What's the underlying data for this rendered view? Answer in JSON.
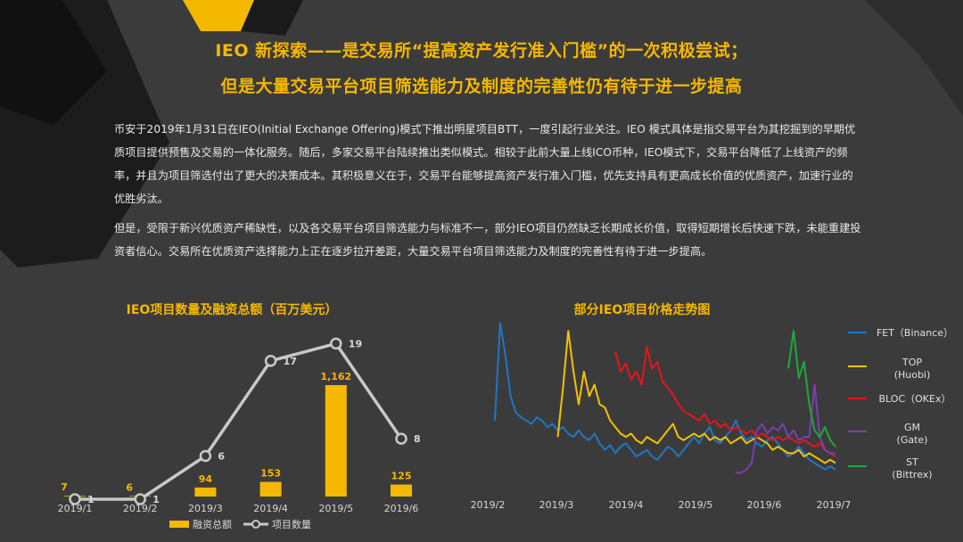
{
  "title_line1": "IEO 新探索——是交易所“提高资产发行准入门槛”的一次积极尝试；",
  "title_line2": "但是大量交易平台项目筛选能力及制度的完善性仍有待于进一步提高",
  "paragraph1": "币安于2019年1月31日在IEO(Initial Exchange Offering)模式下推出明星项目BTT，一度引起行业关注。IEO 模式具体是指交易平台为其挖掘到的早期优质项目提供预售及交易的一体化服务。随后，多家交易平台陆续推出类似模式。相较于此前大量上线ICO币种，IEO模式下，交易平台降低了上线资产的频率，并且为项目筛选付出了更大的决策成本。其积极意义在于，交易平台能够提高资产发行准入门槛，优先支持具有更高成长价值的优质资产，加速行业的优胜劣汰。",
  "paragraph2": "但是，受限于新兴优质资产稀缺性，以及各交易平台项目筛选能力与标准不一，部分IEO项目仍然缺乏长期成长价值，取得短期增长后快速下跌，未能重建投资者信心。交易所在优质资产选择能力上正在逐步拉开差距，大量交易平台项目筛选能力及制度的完善性有待于进一步提高。",
  "colors": {
    "accent": "#f5b800",
    "background": "#3c3b3c",
    "line_gray": "#c8c8c8",
    "fet": "#1f77c4",
    "top": "#f2c200",
    "bloc": "#e8141a",
    "gm": "#7a3fb0",
    "st": "#1fa83a"
  },
  "chart_data": [
    {
      "type": "bar",
      "title": "IEO项目数量及融资总额（百万美元）",
      "categories": [
        "2019/1",
        "2019/2",
        "2019/3",
        "2019/4",
        "2019/5",
        "2019/6"
      ],
      "series": [
        {
          "name": "融资总额",
          "type": "bar",
          "values": [
            7,
            6,
            94,
            153,
            1162,
            125
          ],
          "labels": [
            "7",
            "6",
            "94",
            "153",
            "1,162",
            "125"
          ]
        },
        {
          "name": "项目数量",
          "type": "line",
          "values": [
            1,
            1,
            6,
            17,
            19,
            8
          ],
          "labels": [
            "1",
            "1",
            "6",
            "17",
            "19",
            "8"
          ]
        }
      ],
      "legend": "bottom"
    },
    {
      "type": "line",
      "title": "部分IEO项目价格走势图",
      "x_ticks": [
        "2019/2",
        "2019/3",
        "2019/4",
        "2019/5",
        "2019/6",
        "2019/7"
      ],
      "x_range": [
        "2019-01-31",
        "2019-07-05"
      ],
      "axis_visible": false,
      "legend": "right",
      "series": [
        {
          "name": "FET (Binance)",
          "legend_lines": [
            "FET（Binance）"
          ],
          "color": "#1f77c4",
          "start": 0,
          "values": [
            0.4,
            1.0,
            0.8,
            0.55,
            0.45,
            0.42,
            0.4,
            0.38,
            0.42,
            0.4,
            0.36,
            0.38,
            0.34,
            0.36,
            0.32,
            0.3,
            0.34,
            0.3,
            0.28,
            0.32,
            0.26,
            0.22,
            0.25,
            0.2,
            0.24,
            0.26,
            0.22,
            0.18,
            0.2,
            0.22,
            0.18,
            0.16,
            0.2,
            0.24,
            0.22,
            0.18,
            0.22,
            0.26,
            0.3,
            0.26,
            0.32,
            0.36,
            0.28,
            0.26,
            0.3,
            0.34,
            0.4,
            0.32,
            0.28,
            0.3,
            0.26,
            0.24,
            0.28,
            0.3,
            0.26,
            0.22,
            0.18,
            0.2,
            0.24,
            0.2,
            0.16,
            0.14,
            0.12,
            0.1,
            0.12,
            0.1
          ]
        },
        {
          "name": "TOP (Huobi)",
          "legend_lines": [
            "TOP",
            "(Huobi)"
          ],
          "color": "#f2c200",
          "start": 12,
          "values": [
            0.3,
            0.6,
            0.95,
            0.7,
            0.5,
            0.7,
            0.55,
            0.62,
            0.5,
            0.48,
            0.4,
            0.36,
            0.32,
            0.3,
            0.32,
            0.28,
            0.26,
            0.3,
            0.28,
            0.26,
            0.3,
            0.34,
            0.38,
            0.3,
            0.28,
            0.3,
            0.32,
            0.3,
            0.32,
            0.28,
            0.3,
            0.28,
            0.3,
            0.26,
            0.28,
            0.3,
            0.26,
            0.28,
            0.3,
            0.28,
            0.26,
            0.22,
            0.24,
            0.22,
            0.2,
            0.2,
            0.22,
            0.18,
            0.2,
            0.18,
            0.16,
            0.14,
            0.16,
            0.14
          ]
        },
        {
          "name": "BLOC (OKEx)",
          "legend_lines": [
            "BLOC（OKEx）"
          ],
          "color": "#e8141a",
          "start": 23,
          "values": [
            0.82,
            0.7,
            0.75,
            0.65,
            0.7,
            0.62,
            0.85,
            0.72,
            0.76,
            0.64,
            0.6,
            0.56,
            0.5,
            0.46,
            0.44,
            0.42,
            0.4,
            0.44,
            0.38,
            0.4,
            0.36,
            0.38,
            0.34,
            0.36,
            0.34,
            0.32,
            0.34,
            0.3,
            0.32,
            0.3,
            0.28,
            0.3,
            0.28,
            0.3,
            0.28,
            0.26,
            0.28,
            0.26,
            0.24,
            0.26,
            0.22,
            0.2,
            0.18
          ]
        },
        {
          "name": "GM (Gate)",
          "legend_lines": [
            "GM",
            "(Gate)"
          ],
          "color": "#7a3fb0",
          "start": 46,
          "values": [
            0.08,
            0.08,
            0.1,
            0.14,
            0.34,
            0.38,
            0.32,
            0.36,
            0.34,
            0.38,
            0.3,
            0.34,
            0.28,
            0.3,
            0.3,
            0.62,
            0.3,
            0.22,
            0.2,
            0.2
          ]
        },
        {
          "name": "ST (Bittrex)",
          "legend_lines": [
            "ST",
            "(Bittrex)"
          ],
          "color": "#1fa83a",
          "start": 56,
          "values": [
            0.72,
            0.95,
            0.66,
            0.76,
            0.5,
            0.34,
            0.3,
            0.36,
            0.28,
            0.24
          ]
        }
      ]
    }
  ]
}
